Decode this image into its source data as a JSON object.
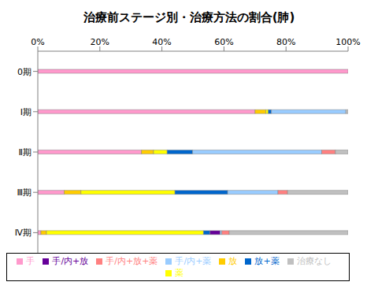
{
  "chart_data": {
    "type": "bar",
    "title": "治療前ステージ別・治療方法の割合(肺)",
    "orientation": "horizontal",
    "stacked": true,
    "grid": false,
    "legend": "bottom",
    "categories": [
      "0期",
      "Ⅰ期",
      "Ⅱ期",
      "Ⅲ期",
      "Ⅳ期"
    ],
    "xlim": [
      0,
      100
    ],
    "xticks": [
      {
        "value": 0,
        "label": "0%"
      },
      {
        "value": 20,
        "label": "20%"
      },
      {
        "value": 40,
        "label": "40%"
      },
      {
        "value": 60,
        "label": "60%"
      },
      {
        "value": 80,
        "label": "80%"
      },
      {
        "value": 100,
        "label": "100%"
      }
    ],
    "series": [
      {
        "name": "手",
        "color": "#ff99cc",
        "values": [
          100,
          70,
          33.4,
          8.5,
          1
        ]
      },
      {
        "name": "放",
        "color": "#ffcc00",
        "values": [
          0,
          3.5,
          3.9,
          5.4,
          1.8
        ]
      },
      {
        "name": "薬",
        "color": "#ffff00",
        "values": [
          0,
          0.8,
          4.4,
          30.3,
          50.6
        ]
      },
      {
        "name": "放+薬",
        "color": "#0066cc",
        "values": [
          0,
          1,
          8.2,
          17,
          2.1
        ]
      },
      {
        "name": "手/内+放",
        "color": "#660099",
        "values": [
          0,
          0,
          0,
          0,
          3.3
        ]
      },
      {
        "name": "手/内+薬",
        "color": "#99ccff",
        "values": [
          0,
          24,
          41.6,
          16.2,
          0.5
        ]
      },
      {
        "name": "手/内+放+薬",
        "color": "#ff8080",
        "values": [
          0,
          0,
          4.4,
          3.1,
          2.4
        ]
      },
      {
        "name": "治療なし",
        "color": "#c0c0c0",
        "values": [
          0,
          0.7,
          4.1,
          19.5,
          38.3
        ]
      }
    ]
  }
}
